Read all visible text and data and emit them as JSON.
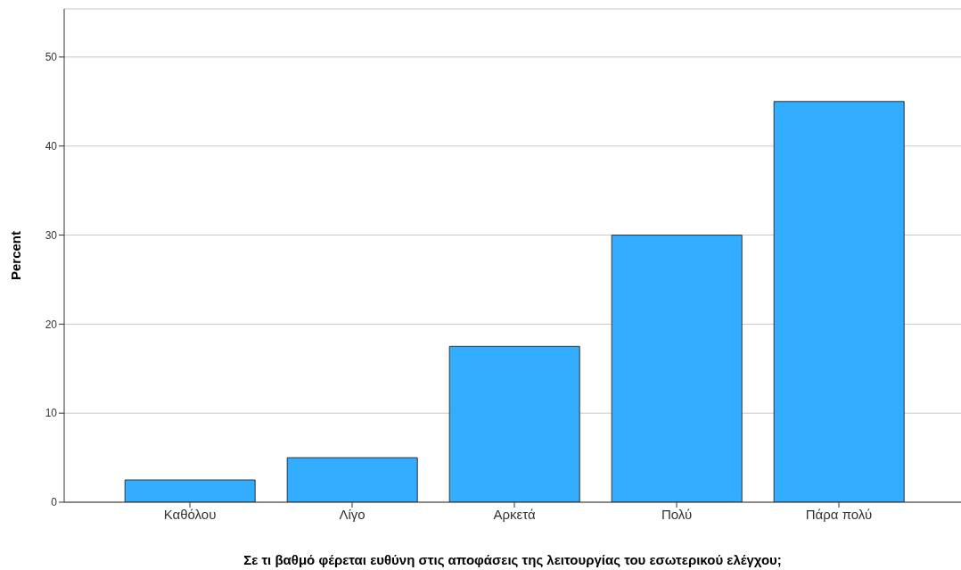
{
  "chart_data": {
    "type": "bar",
    "xlabel": "Σε τι βαθμό φέρεται ευθύνη στις αποφάσεις της λειτουργίας του εσωτερικού ελέγχου;",
    "ylabel": "Percent",
    "categories": [
      "Καθόλου",
      "Λίγο",
      "Αρκετά",
      "Πολύ",
      "Πάρα πολύ"
    ],
    "values": [
      2.5,
      5,
      17.5,
      30,
      45
    ],
    "color": "#33adff",
    "ylim": [
      0,
      55.4
    ],
    "yticks": [
      0,
      10,
      20,
      30,
      40,
      50
    ],
    "grid": "y"
  }
}
